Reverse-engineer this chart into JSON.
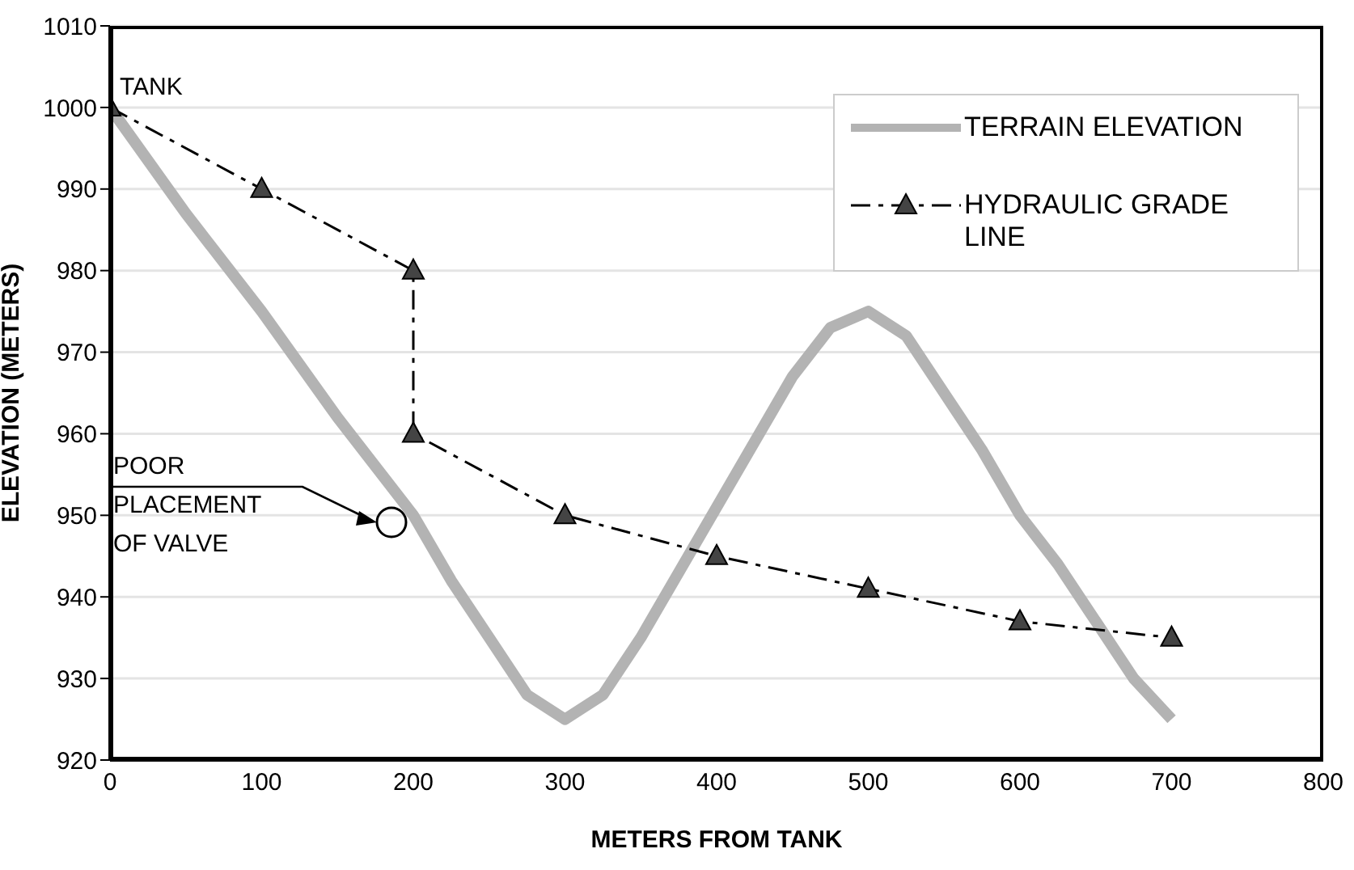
{
  "chart_data": {
    "type": "line",
    "xlabel": "METERS FROM TANK",
    "ylabel": "ELEVATION (METERS)",
    "xlim": [
      0,
      800
    ],
    "xticks": [
      0,
      100,
      200,
      300,
      400,
      500,
      600,
      700,
      800
    ],
    "ylim": [
      920,
      1010
    ],
    "yticks": [
      920,
      930,
      940,
      950,
      960,
      970,
      980,
      990,
      1000,
      1010
    ],
    "grid": "y",
    "legend": "top right",
    "series": [
      {
        "name": "TERRAIN ELEVATION",
        "color": "#b3b3b3",
        "marker": "none",
        "line_style": "solid",
        "x": [
          0,
          50,
          100,
          150,
          200,
          225,
          250,
          275,
          300,
          325,
          350,
          375,
          400,
          425,
          450,
          475,
          500,
          525,
          550,
          575,
          600,
          625,
          650,
          675,
          700
        ],
        "values": [
          1000,
          987,
          975,
          962,
          950,
          942,
          935,
          928,
          925,
          928,
          935,
          943,
          951,
          959,
          967,
          973,
          975,
          972,
          965,
          958,
          950,
          944,
          937,
          930,
          925
        ]
      },
      {
        "name": "HYDRAULIC GRADE LINE",
        "color": "#000000",
        "marker": "triangle",
        "line_style": "dashed",
        "x": [
          0,
          100,
          200,
          200,
          300,
          400,
          500,
          600,
          700
        ],
        "values": [
          1000,
          990,
          980,
          960,
          950,
          945,
          941,
          937,
          935
        ]
      }
    ],
    "annotations": [
      {
        "text": "TANK",
        "x": 0,
        "y": 1000
      },
      "POOR PLACEMENT OF VALVE"
    ]
  }
}
